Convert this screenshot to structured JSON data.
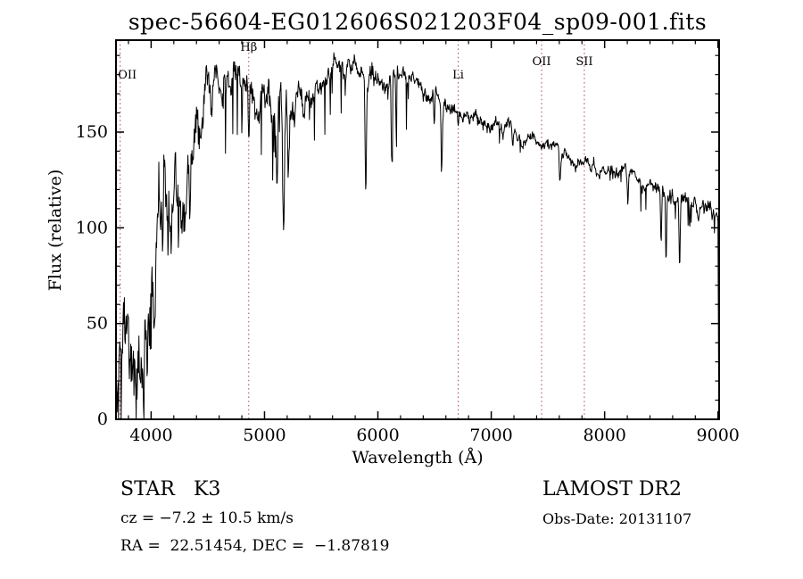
{
  "figure": {
    "title": "spec-56604-EG012606S021203F04_sp09-001.fits",
    "x_label": "Wavelength (Å)",
    "y_label": "Flux (relative)"
  },
  "annotations": {
    "object_class": "STAR   K3",
    "survey": "LAMOST DR2",
    "cz": "cz = −7.2 ± 10.5 km/s",
    "obs_date": "Obs-Date: 20131107",
    "coordinates": "RA =  22.51454, DEC =  −1.87819"
  },
  "chart_data": {
    "type": "line",
    "title": "spec-56604-EG012606S021203F04_sp09-001.fits",
    "xlabel": "Wavelength (Å)",
    "ylabel": "Flux (relative)",
    "xlim": [
      3690,
      9010
    ],
    "ylim": [
      0,
      198
    ],
    "x_ticks": [
      4000,
      5000,
      6000,
      7000,
      8000,
      9000
    ],
    "x_minor_step": 200,
    "y_ticks": [
      0,
      50,
      100,
      150
    ],
    "y_minor_step": 10,
    "grid": false,
    "legend": "none",
    "line_color": "#000000",
    "marker_line_color": "#aa4444",
    "marker_label_color": "#111111",
    "spectral_line_markers": [
      {
        "label": "OII",
        "wavelength": 3727,
        "label_y": 88,
        "dx": 8
      },
      {
        "label": "Hβ",
        "wavelength": 4861,
        "label_y": 57,
        "dx": 0
      },
      {
        "label": "Li",
        "wavelength": 6708,
        "label_y": 88,
        "dx": 0
      },
      {
        "label": "OII",
        "wavelength": 7444,
        "label_y": 73,
        "dx": 0
      },
      {
        "label": "SII",
        "wavelength": 7821,
        "label_y": 73,
        "dx": 0
      }
    ],
    "spectrum": {
      "seed": 20131107,
      "step": 4,
      "x_start": 3692,
      "x_end": 9000,
      "dip_prob": 0.055,
      "continuum": [
        [
          3690,
          18
        ],
        [
          3740,
          30
        ],
        [
          3800,
          42
        ],
        [
          3860,
          50
        ],
        [
          3920,
          58
        ],
        [
          3980,
          66
        ],
        [
          4040,
          80
        ],
        [
          4100,
          95
        ],
        [
          4160,
          108
        ],
        [
          4220,
          118
        ],
        [
          4280,
          128
        ],
        [
          4340,
          138
        ],
        [
          4400,
          150
        ],
        [
          4460,
          162
        ],
        [
          4520,
          172
        ],
        [
          4580,
          178
        ],
        [
          4640,
          180
        ],
        [
          4700,
          178
        ],
        [
          4760,
          176
        ],
        [
          4820,
          175
        ],
        [
          4880,
          172
        ],
        [
          4940,
          168
        ],
        [
          5000,
          164
        ],
        [
          5060,
          161
        ],
        [
          5120,
          159
        ],
        [
          5180,
          159
        ],
        [
          5240,
          162
        ],
        [
          5300,
          167
        ],
        [
          5360,
          172
        ],
        [
          5420,
          176
        ],
        [
          5480,
          178
        ],
        [
          5540,
          179
        ],
        [
          5600,
          180
        ],
        [
          5660,
          181
        ],
        [
          5720,
          181
        ],
        [
          5780,
          182
        ],
        [
          5840,
          182
        ],
        [
          5900,
          182
        ],
        [
          5960,
          182
        ],
        [
          6020,
          181
        ],
        [
          6080,
          180
        ],
        [
          6140,
          178
        ],
        [
          6200,
          177
        ],
        [
          6260,
          176
        ],
        [
          6320,
          174
        ],
        [
          6380,
          172
        ],
        [
          6440,
          170
        ],
        [
          6500,
          169
        ],
        [
          6560,
          167
        ],
        [
          6620,
          165
        ],
        [
          6680,
          164
        ],
        [
          6740,
          162
        ],
        [
          6800,
          160
        ],
        [
          6860,
          158
        ],
        [
          6920,
          156
        ],
        [
          6980,
          154
        ],
        [
          7040,
          153
        ],
        [
          7100,
          151
        ],
        [
          7160,
          150
        ],
        [
          7220,
          148
        ],
        [
          7280,
          147
        ],
        [
          7340,
          146
        ],
        [
          7400,
          144
        ],
        [
          7460,
          143
        ],
        [
          7520,
          142
        ],
        [
          7580,
          141
        ],
        [
          7640,
          140
        ],
        [
          7700,
          138
        ],
        [
          7760,
          137
        ],
        [
          7820,
          136
        ],
        [
          7880,
          134
        ],
        [
          7940,
          133
        ],
        [
          8000,
          131
        ],
        [
          8060,
          130
        ],
        [
          8120,
          128
        ],
        [
          8180,
          127
        ],
        [
          8240,
          126
        ],
        [
          8300,
          124
        ],
        [
          8360,
          123
        ],
        [
          8420,
          122
        ],
        [
          8480,
          121
        ],
        [
          8540,
          119
        ],
        [
          8600,
          117
        ],
        [
          8660,
          115
        ],
        [
          8720,
          113
        ],
        [
          8780,
          112
        ],
        [
          8840,
          111
        ],
        [
          8900,
          111
        ],
        [
          8960,
          112
        ],
        [
          9000,
          113
        ]
      ],
      "noise_amp": [
        [
          3690,
          20
        ],
        [
          3800,
          24
        ],
        [
          3900,
          25
        ],
        [
          4000,
          24
        ],
        [
          4100,
          22
        ],
        [
          4200,
          20
        ],
        [
          4300,
          18
        ],
        [
          4400,
          15
        ],
        [
          4500,
          11
        ],
        [
          4600,
          9
        ],
        [
          4700,
          8
        ],
        [
          4800,
          8
        ],
        [
          4900,
          9
        ],
        [
          5000,
          10
        ],
        [
          5100,
          11
        ],
        [
          5200,
          10
        ],
        [
          5300,
          8
        ],
        [
          5400,
          7
        ],
        [
          5500,
          6
        ],
        [
          5600,
          6
        ],
        [
          5800,
          5
        ],
        [
          6000,
          5
        ],
        [
          6200,
          4.5
        ],
        [
          6400,
          4
        ],
        [
          6600,
          4
        ],
        [
          6800,
          3.5
        ],
        [
          7000,
          3.5
        ],
        [
          7300,
          3
        ],
        [
          7600,
          3
        ],
        [
          8000,
          3
        ],
        [
          8300,
          3.5
        ],
        [
          8600,
          4
        ],
        [
          9000,
          4.5
        ]
      ],
      "dip_depth": [
        [
          3690,
          55
        ],
        [
          4200,
          50
        ],
        [
          4700,
          40
        ],
        [
          5200,
          30
        ],
        [
          5800,
          30
        ],
        [
          6300,
          25
        ],
        [
          6800,
          12
        ],
        [
          7400,
          9
        ],
        [
          8000,
          9
        ],
        [
          8400,
          18
        ],
        [
          8800,
          14
        ],
        [
          9010,
          8
        ]
      ],
      "absorption_lines": [
        {
          "c": 3934,
          "w": 6,
          "d": 28
        },
        {
          "c": 3969,
          "w": 6,
          "d": 26
        },
        {
          "c": 4102,
          "w": 5,
          "d": 30
        },
        {
          "c": 4226,
          "w": 4,
          "d": 25
        },
        {
          "c": 4305,
          "w": 7,
          "d": 28
        },
        {
          "c": 4341,
          "w": 5,
          "d": 30
        },
        {
          "c": 4861,
          "w": 5,
          "d": 28
        },
        {
          "c": 5110,
          "w": 5,
          "d": 35
        },
        {
          "c": 5168,
          "w": 8,
          "d": 68
        },
        {
          "c": 5210,
          "w": 5,
          "d": 40
        },
        {
          "c": 5893,
          "w": 6,
          "d": 56
        },
        {
          "c": 6122,
          "w": 5,
          "d": 44
        },
        {
          "c": 6162,
          "w": 4,
          "d": 33
        },
        {
          "c": 6497,
          "w": 4,
          "d": 20
        },
        {
          "c": 6563,
          "w": 5,
          "d": 33
        },
        {
          "c": 6708,
          "w": 4,
          "d": 9
        },
        {
          "c": 7190,
          "w": 5,
          "d": 12
        },
        {
          "c": 7605,
          "w": 6,
          "d": 16
        },
        {
          "c": 8205,
          "w": 5,
          "d": 14
        },
        {
          "c": 8498,
          "w": 5,
          "d": 30
        },
        {
          "c": 8542,
          "w": 5,
          "d": 36
        },
        {
          "c": 8662,
          "w": 5,
          "d": 33
        },
        {
          "c": 8750,
          "w": 4,
          "d": 16
        }
      ],
      "edge": [
        [
          9004,
          50
        ],
        [
          9007,
          3
        ]
      ]
    }
  }
}
